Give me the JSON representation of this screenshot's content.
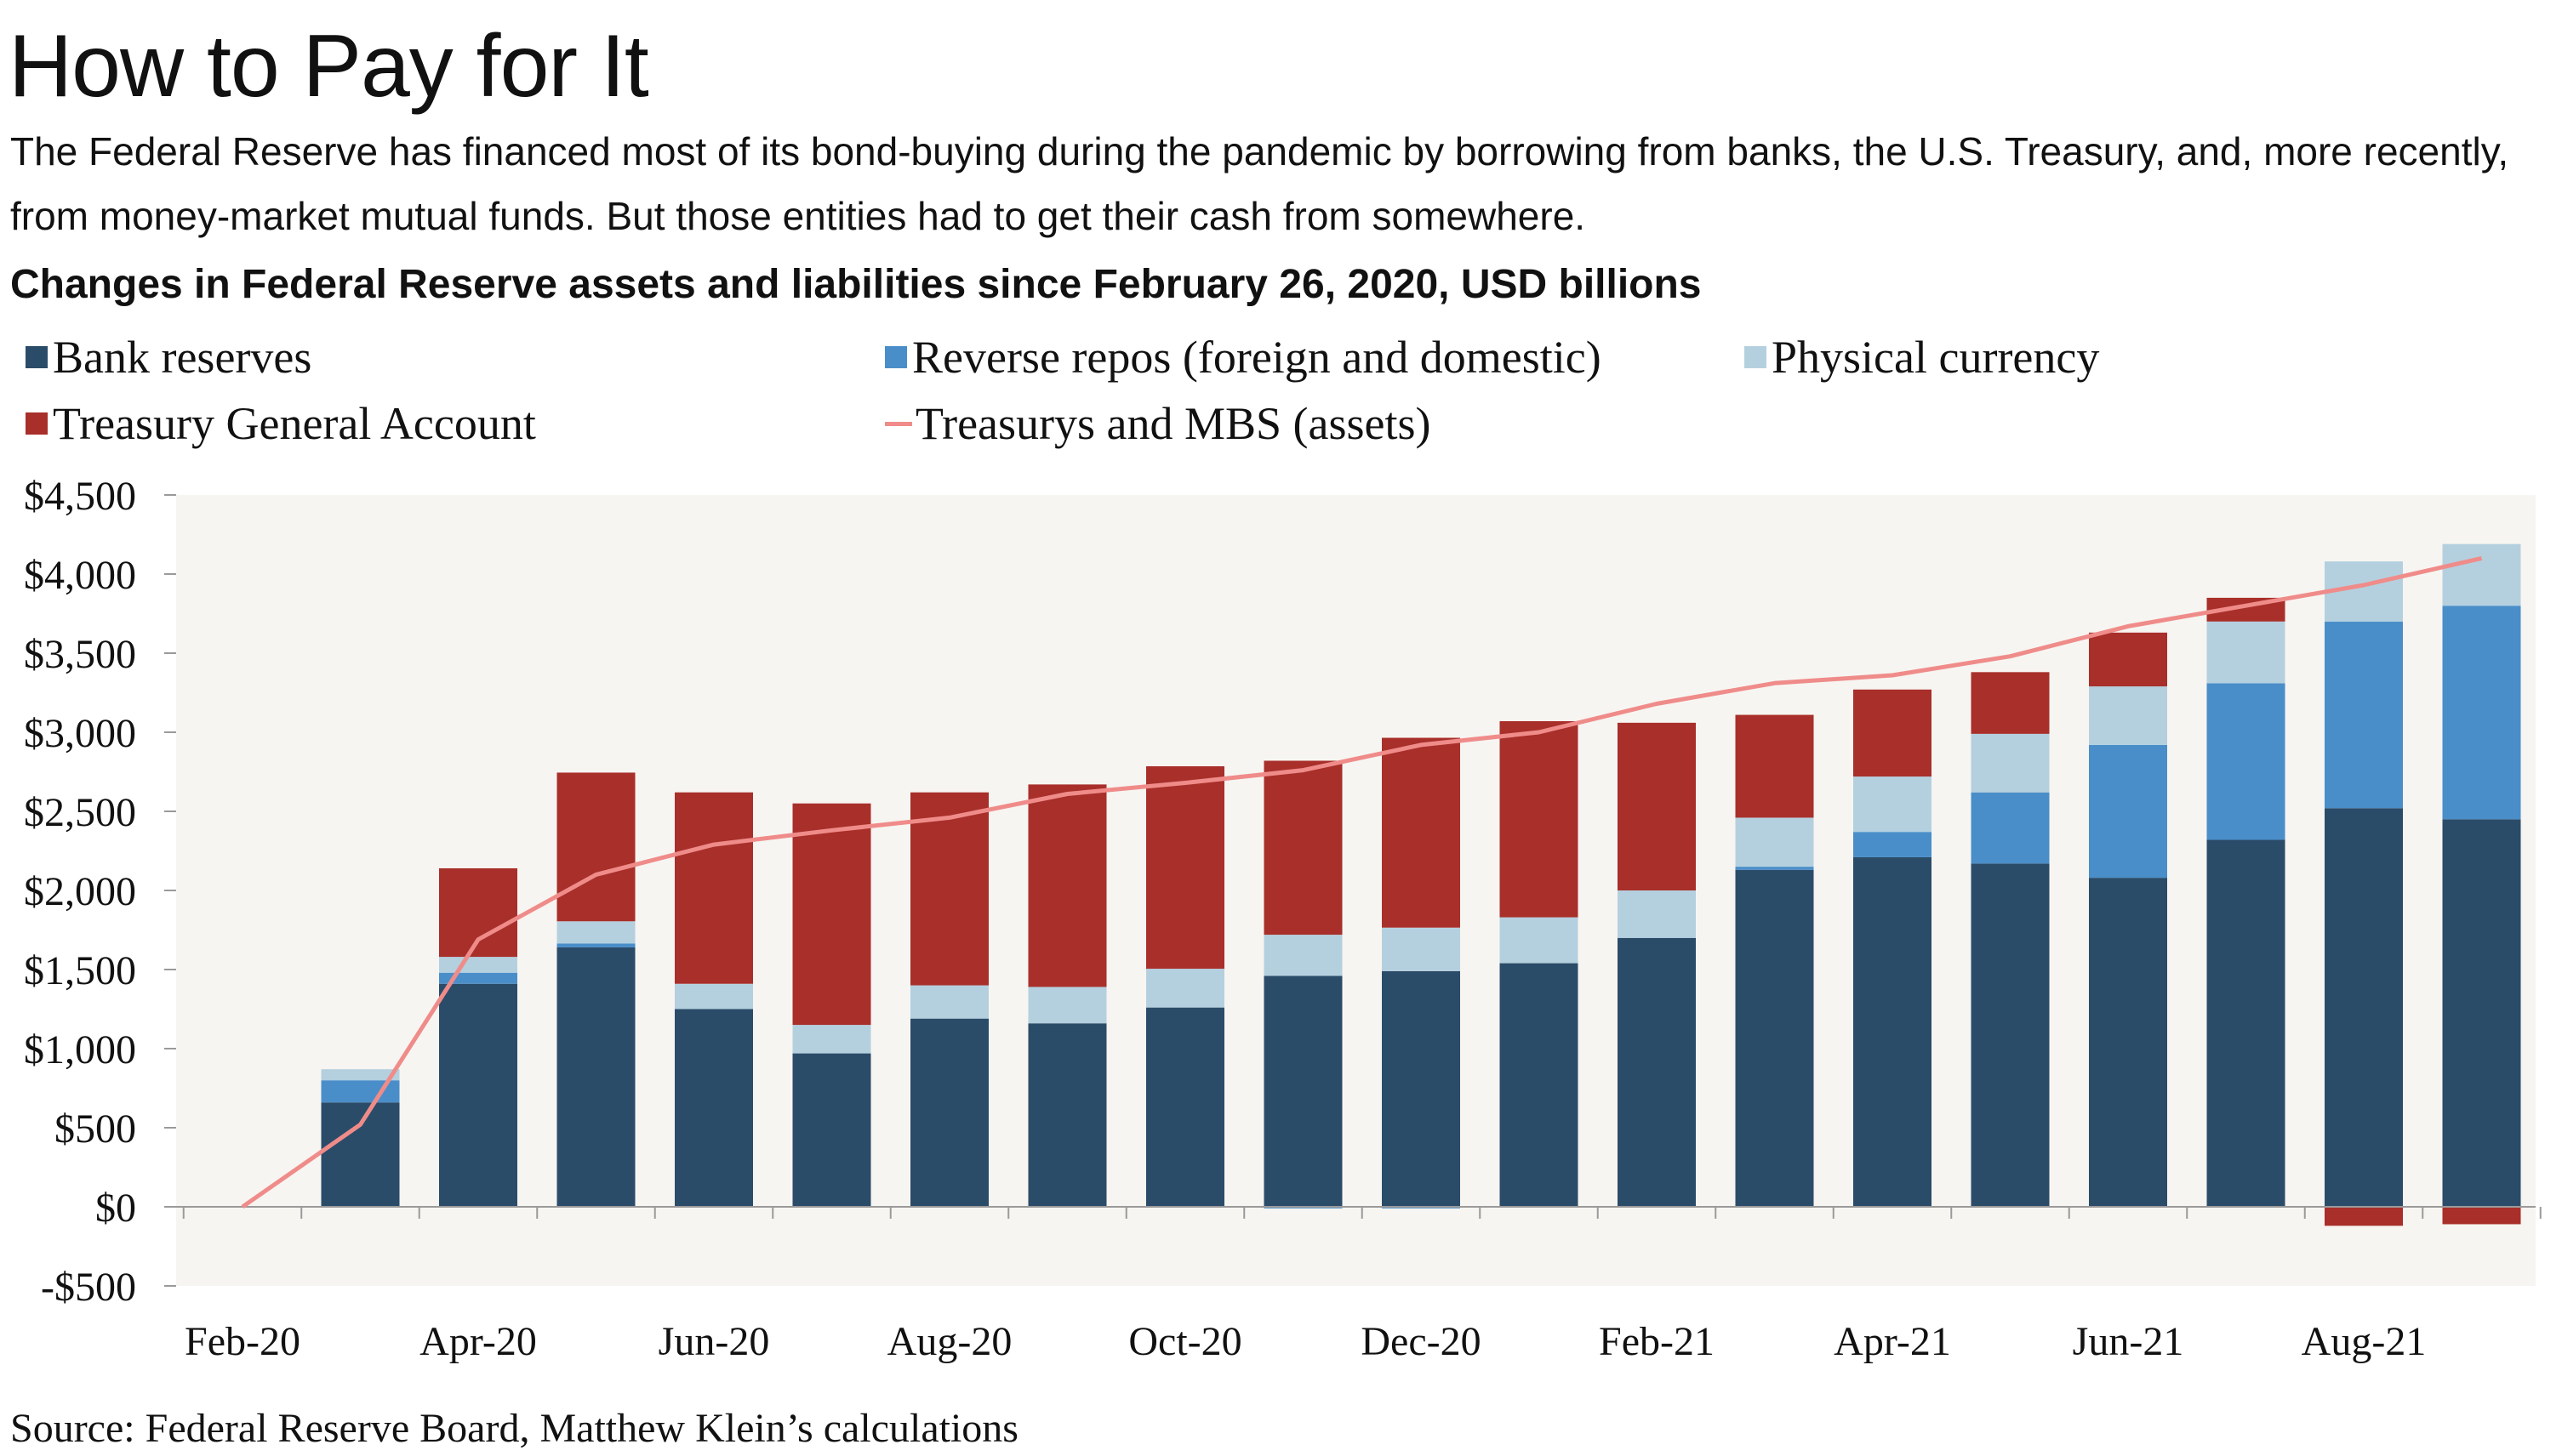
{
  "title": "How to Pay for It",
  "subtitle": "The Federal Reserve has financed most of its bond-buying during the pandemic by borrowing from banks, the U.S. Treasury, and, more recently, from money-market mutual funds. But those entities had to get their cash from somewhere.",
  "source": "Source: Federal Reserve Board, Matthew Klein’s calculations",
  "chart_data": {
    "type": "bar",
    "stacked": true,
    "title": "Changes in Federal Reserve assets and liabilities since February 26, 2020, USD billions",
    "xlabel": "",
    "ylabel": "",
    "ylim": [
      -500,
      4500
    ],
    "yticks": [
      -500,
      0,
      500,
      1000,
      1500,
      2000,
      2500,
      3000,
      3500,
      4000,
      4500
    ],
    "ytick_labels": [
      "-$500",
      "$0",
      "$500",
      "$1,000",
      "$1,500",
      "$2,000",
      "$2,500",
      "$3,000",
      "$3,500",
      "$4,000",
      "$4,500"
    ],
    "x_tick_labels": [
      "Feb-20",
      "Apr-20",
      "Jun-20",
      "Aug-20",
      "Oct-20",
      "Dec-20",
      "Feb-21",
      "Apr-21",
      "Jun-21",
      "Aug-21"
    ],
    "x_tick_months": [
      "2020-02",
      "2020-04",
      "2020-06",
      "2020-08",
      "2020-10",
      "2020-12",
      "2021-02",
      "2021-04",
      "2021-06",
      "2021-08"
    ],
    "grid": false,
    "legend_position": "top",
    "colors": {
      "bank_reserves": "#2b4c69",
      "reverse_repos": "#4a8ec9",
      "physical_currency": "#b4d0df",
      "tga": "#a82f2a",
      "assets_line": "#ef8c8a",
      "plot_background": "#f7f5f1"
    },
    "categories": [
      "2020-03",
      "2020-04",
      "2020-05",
      "2020-06",
      "2020-07",
      "2020-08",
      "2020-09",
      "2020-10",
      "2020-11",
      "2020-12",
      "2021-01",
      "2021-02",
      "2021-03",
      "2021-04",
      "2021-05",
      "2021-06",
      "2021-07",
      "2021-08",
      "2021-09"
    ],
    "series": [
      {
        "key": "bank_reserves",
        "name": "Bank reserves",
        "kind": "bar",
        "values": [
          660,
          1410,
          1640,
          1250,
          970,
          1190,
          1160,
          1260,
          1460,
          1490,
          1540,
          1700,
          2130,
          2210,
          2170,
          2080,
          2320,
          2520,
          2450
        ]
      },
      {
        "key": "reverse_repos",
        "name": "Reverse repos (foreign and domestic)",
        "kind": "bar",
        "values": [
          140,
          70,
          25,
          0,
          0,
          0,
          -5,
          -5,
          -10,
          -10,
          0,
          -5,
          20,
          160,
          450,
          840,
          990,
          1180,
          1350
        ]
      },
      {
        "key": "physical_currency",
        "name": "Physical currency",
        "kind": "bar",
        "values": [
          70,
          100,
          140,
          160,
          180,
          210,
          230,
          245,
          260,
          275,
          290,
          300,
          310,
          350,
          370,
          370,
          390,
          380,
          390
        ]
      },
      {
        "key": "tga",
        "name": "Treasury General Account",
        "kind": "bar",
        "values": [
          0,
          560,
          940,
          1210,
          1400,
          1220,
          1280,
          1280,
          1100,
          1200,
          1240,
          1060,
          650,
          550,
          390,
          340,
          150,
          -120,
          -110
        ]
      },
      {
        "key": "assets_line",
        "name": "Treasurys and MBS (assets)",
        "kind": "line",
        "x": [
          "2020-02",
          "2020-03",
          "2020-04",
          "2020-05",
          "2020-06",
          "2020-07",
          "2020-08",
          "2020-09",
          "2020-10",
          "2020-11",
          "2020-12",
          "2021-01",
          "2021-02",
          "2021-03",
          "2021-04",
          "2021-05",
          "2021-06",
          "2021-07",
          "2021-08",
          "2021-09"
        ],
        "values": [
          0,
          520,
          1690,
          2100,
          2290,
          2380,
          2460,
          2610,
          2680,
          2760,
          2920,
          3000,
          3180,
          3310,
          3360,
          3480,
          3670,
          3800,
          3930,
          4100
        ]
      }
    ]
  }
}
